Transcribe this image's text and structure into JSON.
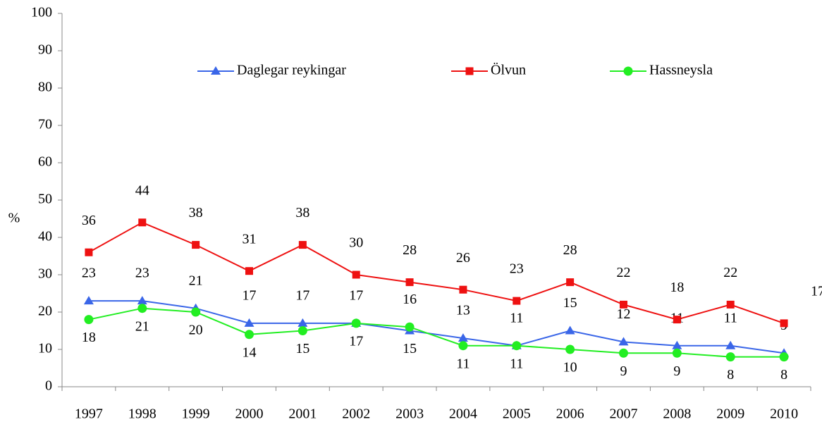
{
  "chart_data": {
    "type": "line",
    "y_label": "%",
    "categories": [
      "1997",
      "1998",
      "1999",
      "2000",
      "2001",
      "2002",
      "2003",
      "2004",
      "2005",
      "2006",
      "2007",
      "2008",
      "2009",
      "2010"
    ],
    "series": [
      {
        "name": "Daglegar reykingar",
        "color": "#3a66e8",
        "marker": "triangle",
        "values": [
          23,
          23,
          21,
          17,
          17,
          17,
          15,
          13,
          11,
          15,
          12,
          11,
          11,
          9
        ]
      },
      {
        "name": "Ölvun",
        "color": "#ee1111",
        "marker": "square",
        "values": [
          36,
          44,
          38,
          31,
          38,
          30,
          28,
          26,
          23,
          28,
          22,
          18,
          22,
          17
        ]
      },
      {
        "name": "Hassneysla",
        "color": "#22ee22",
        "marker": "circle",
        "values": [
          18,
          21,
          20,
          14,
          15,
          17,
          16,
          11,
          11,
          10,
          9,
          9,
          8,
          8
        ]
      }
    ],
    "ylim": [
      0,
      100
    ],
    "yticks": [
      0,
      10,
      20,
      30,
      40,
      50,
      60,
      70,
      80,
      90,
      100
    ],
    "legend": "top"
  }
}
